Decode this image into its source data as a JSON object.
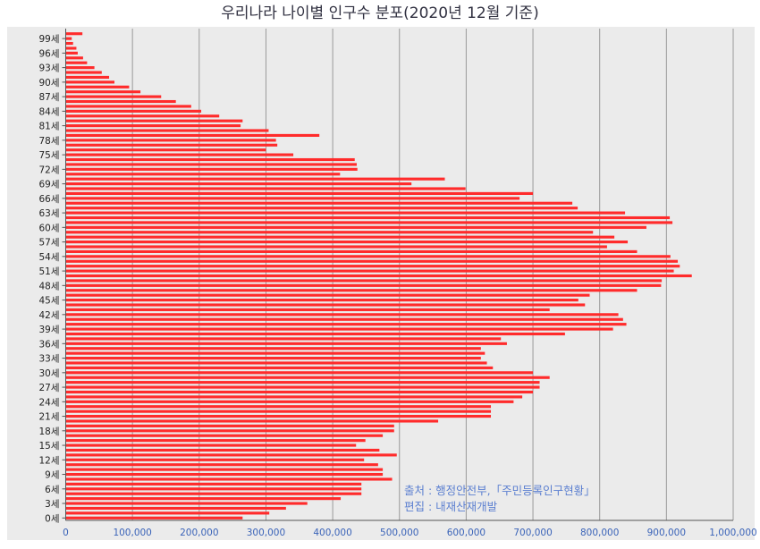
{
  "chart_data": {
    "type": "bar",
    "orientation": "horizontal",
    "title": "우리나라 나이별 인구수 분포(2020년 12월 기준)",
    "xlabel": "",
    "ylabel": "",
    "xlim": [
      0,
      1000000
    ],
    "x_ticks": [
      "0",
      "100,000",
      "200,000",
      "300,000",
      "400,000",
      "500,000",
      "600,000",
      "700,000",
      "800,000",
      "900,000",
      "1,000,000"
    ],
    "y_tick_labels": [
      "0세",
      "3세",
      "6세",
      "9세",
      "12세",
      "15세",
      "18세",
      "21세",
      "24세",
      "27세",
      "30세",
      "33세",
      "36세",
      "39세",
      "42세",
      "45세",
      "48세",
      "51세",
      "54세",
      "57세",
      "60세",
      "63세",
      "66세",
      "69세",
      "72세",
      "75세",
      "78세",
      "81세",
      "84세",
      "87세",
      "90세",
      "93세",
      "96세",
      "99세"
    ],
    "grid": true,
    "bar_color": "#ff2b2b",
    "categories": [
      "0세",
      "1세",
      "2세",
      "3세",
      "4세",
      "5세",
      "6세",
      "7세",
      "8세",
      "9세",
      "10세",
      "11세",
      "12세",
      "13세",
      "14세",
      "15세",
      "16세",
      "17세",
      "18세",
      "19세",
      "20세",
      "21세",
      "22세",
      "23세",
      "24세",
      "25세",
      "26세",
      "27세",
      "28세",
      "29세",
      "30세",
      "31세",
      "32세",
      "33세",
      "34세",
      "35세",
      "36세",
      "37세",
      "38세",
      "39세",
      "40세",
      "41세",
      "42세",
      "43세",
      "44세",
      "45세",
      "46세",
      "47세",
      "48세",
      "49세",
      "50세",
      "51세",
      "52세",
      "53세",
      "54세",
      "55세",
      "56세",
      "57세",
      "58세",
      "59세",
      "60세",
      "61세",
      "62세",
      "63세",
      "64세",
      "65세",
      "66세",
      "67세",
      "68세",
      "69세",
      "70세",
      "71세",
      "72세",
      "73세",
      "74세",
      "75세",
      "76세",
      "77세",
      "78세",
      "79세",
      "80세",
      "81세",
      "82세",
      "83세",
      "84세",
      "85세",
      "86세",
      "87세",
      "88세",
      "89세",
      "90세",
      "91세",
      "92세",
      "93세",
      "94세",
      "95세",
      "96세",
      "97세",
      "98세",
      "99세",
      "100세"
    ],
    "values": [
      265000,
      305000,
      330000,
      362000,
      412000,
      443000,
      443000,
      443000,
      489000,
      475000,
      475000,
      468000,
      447000,
      496000,
      470000,
      435000,
      449000,
      475000,
      492000,
      492000,
      558000,
      637000,
      637000,
      637000,
      671000,
      684000,
      700000,
      710000,
      710000,
      725000,
      700000,
      640000,
      631000,
      622000,
      628000,
      622000,
      661000,
      652000,
      748000,
      820000,
      840000,
      835000,
      828000,
      725000,
      778000,
      768000,
      785000,
      856000,
      892000,
      893000,
      938000,
      911000,
      920000,
      917000,
      906000,
      856000,
      811000,
      842000,
      822000,
      790000,
      870000,
      909000,
      905000,
      838000,
      767000,
      759000,
      680000,
      700000,
      599000,
      518000,
      568000,
      411000,
      437000,
      436000,
      433000,
      341000,
      300000,
      317000,
      315000,
      380000,
      304000,
      262000,
      265000,
      230000,
      203000,
      188000,
      165000,
      143000,
      112000,
      95000,
      73000,
      65000,
      54000,
      43000,
      32000,
      26000,
      18000,
      16000,
      11000,
      9000,
      25000
    ],
    "source_note": "출처 : 행정안전부,「주민등록인구현황」",
    "editor_note": "편집 : 내재산재개발"
  }
}
